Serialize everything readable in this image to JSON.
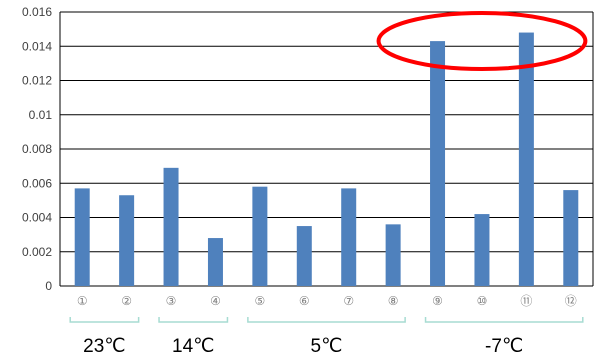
{
  "chart_data": {
    "type": "bar",
    "categories": [
      "①",
      "②",
      "③",
      "④",
      "⑤",
      "⑥",
      "⑦",
      "⑧",
      "⑨",
      "⑩",
      "⑪",
      "⑫"
    ],
    "values": [
      0.0057,
      0.0053,
      0.0069,
      0.0028,
      0.0058,
      0.0035,
      0.0057,
      0.0036,
      0.0143,
      0.0042,
      0.0148,
      0.0056
    ],
    "ylim": [
      0,
      0.016
    ],
    "yticks": [
      "0",
      "0.002",
      "0.004",
      "0.006",
      "0.008",
      "0.01",
      "0.012",
      "0.014",
      "0.016"
    ],
    "grid": true,
    "legend": "none",
    "bar_color": "#4f81bd",
    "groups": [
      {
        "label": "23℃",
        "from": 0,
        "to": 1
      },
      {
        "label": "14℃",
        "from": 2,
        "to": 3
      },
      {
        "label": "5℃",
        "from": 4,
        "to": 7
      },
      {
        "label": "-7℃",
        "from": 8,
        "to": 11
      }
    ],
    "highlight": {
      "shape": "ellipse",
      "color": "#ff0000",
      "covers": [
        8,
        10
      ]
    }
  }
}
